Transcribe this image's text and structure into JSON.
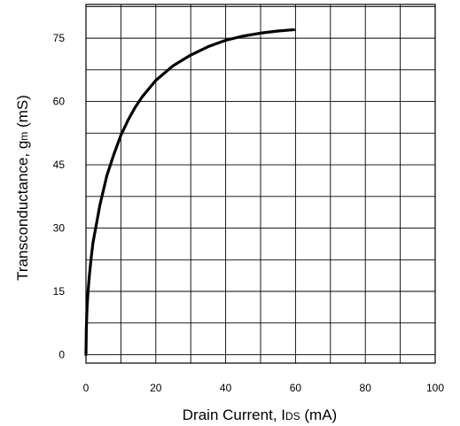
{
  "chart_data": {
    "type": "line",
    "title": "",
    "xlabel_main": "Drain Current, I",
    "xlabel_sub": "DS",
    "xlabel_unit": " (mA)",
    "ylabel_main": "Transconductance, g",
    "ylabel_sub": "m",
    "ylabel_unit": " (mS)",
    "xlim": [
      0,
      100
    ],
    "ylim": [
      -2,
      83
    ],
    "grid": true,
    "x_ticks": [
      "0",
      "20",
      "40",
      "60",
      "80",
      "100"
    ],
    "y_ticks": [
      "0",
      "15",
      "30",
      "45",
      "60",
      "75"
    ],
    "series": [
      {
        "color": "#000000",
        "x": [
          0.0,
          0.1,
          0.3,
          0.6,
          1.0,
          1.5,
          2.0,
          3.0,
          4.0,
          5.0,
          6.0,
          8.0,
          10.0,
          12.0,
          14.0,
          16.0,
          18.0,
          20.0,
          25.0,
          30.0,
          35.0,
          40.0,
          45.0,
          50.0,
          55.0,
          59.5
        ],
        "y": [
          0.0,
          6.0,
          11.0,
          15.0,
          19.0,
          23.0,
          26.5,
          31.0,
          35.5,
          39.0,
          42.5,
          47.5,
          52.0,
          55.5,
          58.5,
          61.0,
          63.0,
          65.0,
          68.5,
          71.0,
          73.0,
          74.5,
          75.5,
          76.2,
          76.7,
          77.0
        ]
      }
    ]
  }
}
